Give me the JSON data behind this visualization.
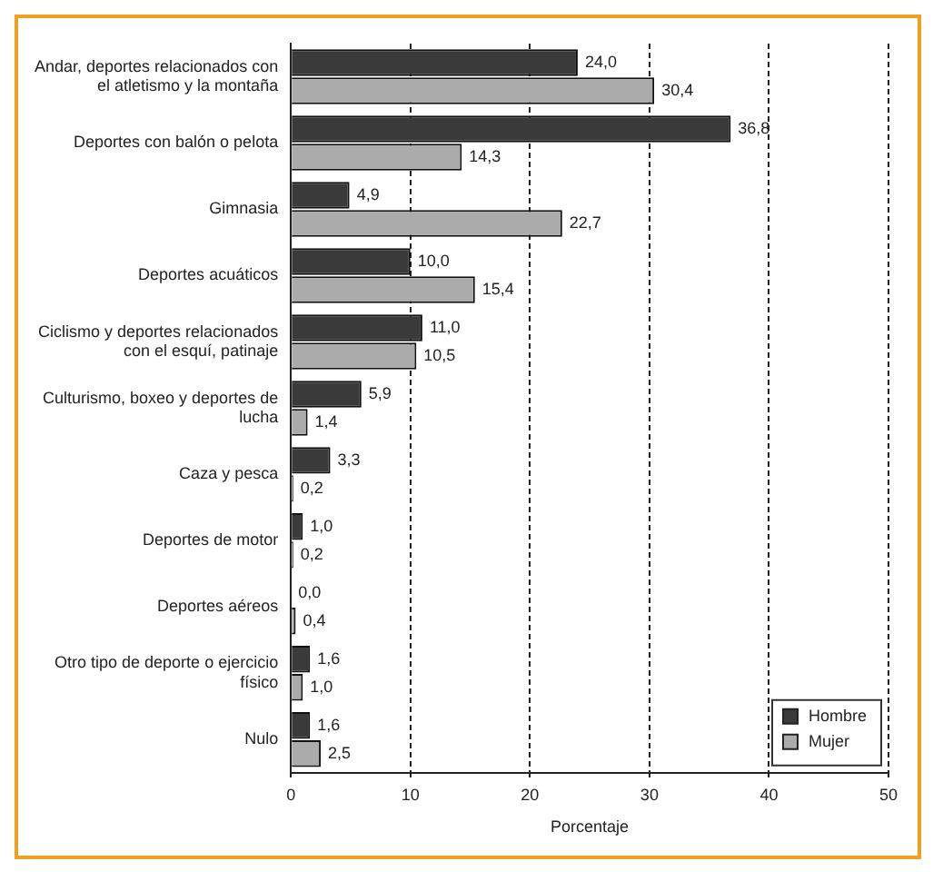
{
  "chart_data": {
    "type": "bar",
    "orientation": "horizontal",
    "xlabel": "Porcentaje",
    "categories": [
      "Andar, deportes relacionados con el atletismo y la montaña",
      "Deportes con balón o pelota",
      "Gimnasia",
      "Deportes acuáticos",
      "Ciclismo y deportes relacionados con el esquí, patinaje",
      "Culturismo, boxeo y deportes de lucha",
      "Caza y pesca",
      "Deportes de motor",
      "Deportes aéreos",
      "Otro tipo de deporte o ejercicio físico",
      "Nulo"
    ],
    "series": [
      {
        "name": "Hombre",
        "color": "#3a3a3a",
        "values": [
          24.0,
          36.8,
          4.9,
          10.0,
          11.0,
          5.9,
          3.3,
          1.0,
          0.0,
          1.6,
          1.6
        ],
        "value_labels": [
          "24,0",
          "36,8",
          "4,9",
          "10,0",
          "11,0",
          "5,9",
          "3,3",
          "1,0",
          "0,0",
          "1,6",
          "1,6"
        ]
      },
      {
        "name": "Mujer",
        "color": "#ababab",
        "values": [
          30.4,
          14.3,
          22.7,
          15.4,
          10.5,
          1.4,
          0.2,
          0.2,
          0.4,
          1.0,
          2.5
        ],
        "value_labels": [
          "30,4",
          "14,3",
          "22,7",
          "15,4",
          "10,5",
          "1,4",
          "0,2",
          "0,2",
          "0,4",
          "1,0",
          "2,5"
        ]
      }
    ],
    "xlim": [
      0,
      50
    ],
    "xticks": [
      0,
      10,
      20,
      30,
      40,
      50
    ],
    "grid": "x",
    "legend": "bottom right"
  }
}
